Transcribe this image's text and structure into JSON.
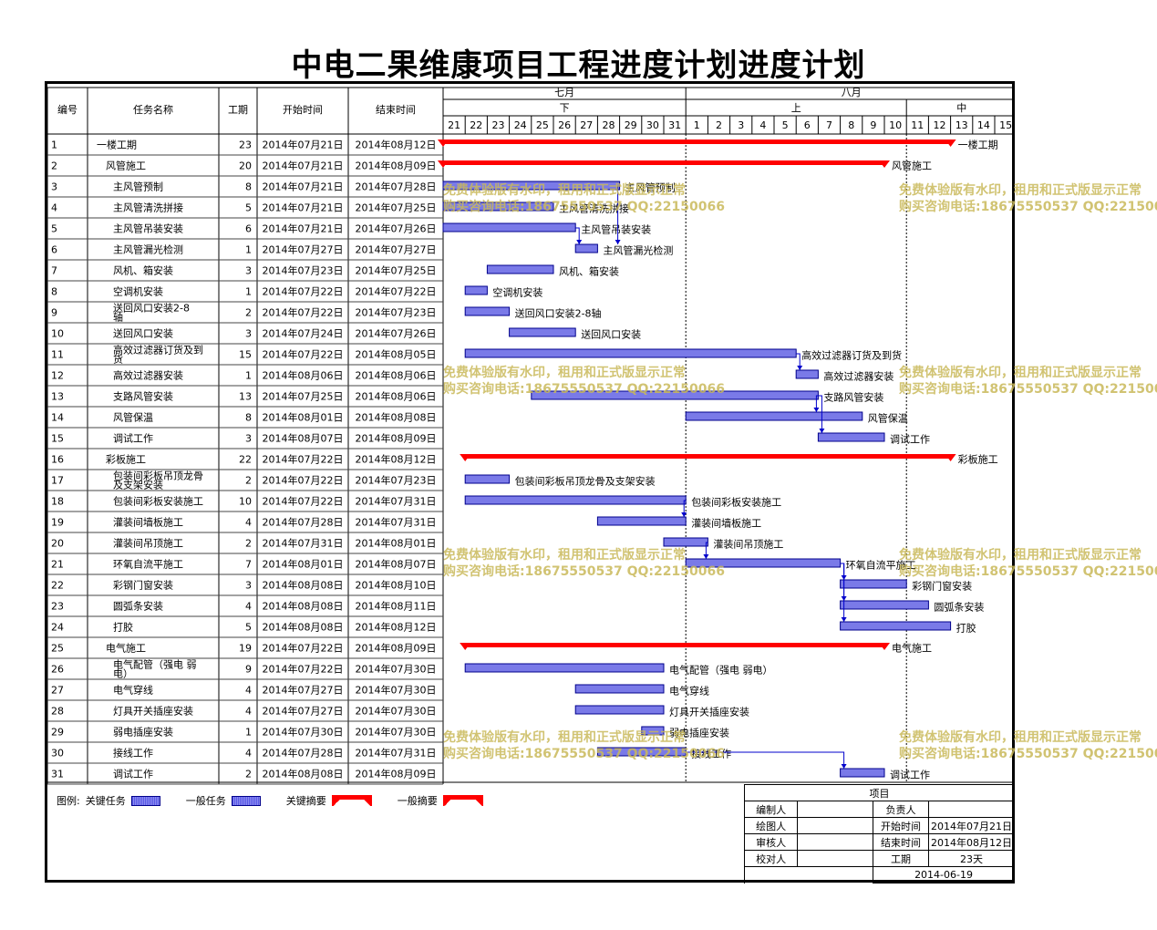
{
  "title": "中电二果维康项目工程进度计划进度计划",
  "headers": {
    "id": "编号",
    "name": "任务名称",
    "duration": "工期",
    "start": "开始时间",
    "end": "结束时间"
  },
  "months": [
    {
      "label": "七月"
    },
    {
      "label": "八月"
    }
  ],
  "periods": [
    {
      "label": "下"
    },
    {
      "label": "上"
    },
    {
      "label": "中"
    }
  ],
  "days": [
    "21",
    "22",
    "23",
    "24",
    "25",
    "26",
    "27",
    "28",
    "29",
    "30",
    "31",
    "1",
    "2",
    "3",
    "4",
    "5",
    "6",
    "7",
    "8",
    "9",
    "10",
    "11",
    "12",
    "13",
    "14",
    "15"
  ],
  "legend": {
    "prefix": "图例:",
    "critical_task": "关键任务",
    "normal_task": "一般任务",
    "critical_summary": "关键摘要",
    "normal_summary": "一般摘要"
  },
  "info": {
    "header": "项目",
    "rows": [
      [
        "编制人",
        "",
        "负责人",
        ""
      ],
      [
        "绘图人",
        "",
        "开始时间",
        "2014年07月21日"
      ],
      [
        "审核人",
        "",
        "结束时间",
        "2014年08月12日"
      ],
      [
        "校对人",
        "",
        "工期",
        "23天"
      ]
    ],
    "date": "2014-06-19"
  },
  "watermark": {
    "line1": "免费体验版有水印，租用和正式版显示正常",
    "line2": "购买咨询电话:18675550537 QQ:22150066"
  },
  "colors": {
    "summary": "#ff0000",
    "task_fill": "#7a7ae8",
    "task_border": "#00008b",
    "watermark": "#c9b95a"
  },
  "chart_data": {
    "type": "gantt",
    "x_start": "2014-07-21",
    "x_end": "2014-08-15",
    "tasks": [
      {
        "id": "1",
        "name": "一楼工期",
        "duration": 23,
        "start": "2014年07月21日",
        "end": "2014年08月12日",
        "level": 0,
        "summary": true
      },
      {
        "id": "2",
        "name": "风管施工",
        "duration": 20,
        "start": "2014年07月21日",
        "end": "2014年08月09日",
        "level": 1,
        "summary": true
      },
      {
        "id": "3",
        "name": "主风管预制",
        "duration": 8,
        "start": "2014年07月21日",
        "end": "2014年07月28日",
        "level": 2
      },
      {
        "id": "4",
        "name": "主风管清洗拼接",
        "duration": 5,
        "start": "2014年07月21日",
        "end": "2014年07月25日",
        "level": 2
      },
      {
        "id": "5",
        "name": "主风管吊装安装",
        "duration": 6,
        "start": "2014年07月21日",
        "end": "2014年07月26日",
        "level": 2
      },
      {
        "id": "6",
        "name": "主风管漏光检测",
        "duration": 1,
        "start": "2014年07月27日",
        "end": "2014年07月27日",
        "level": 2
      },
      {
        "id": "7",
        "name": "风机、箱安装",
        "duration": 3,
        "start": "2014年07月23日",
        "end": "2014年07月25日",
        "level": 2
      },
      {
        "id": "8",
        "name": "空调机安装",
        "duration": 1,
        "start": "2014年07月22日",
        "end": "2014年07月22日",
        "level": 2
      },
      {
        "id": "9",
        "name": "送回风口安装2-8轴",
        "duration": 2,
        "start": "2014年07月22日",
        "end": "2014年07月23日",
        "level": 2
      },
      {
        "id": "10",
        "name": "送回风口安装",
        "duration": 3,
        "start": "2014年07月24日",
        "end": "2014年07月26日",
        "level": 2
      },
      {
        "id": "11",
        "name": "高效过滤器订货及到货",
        "duration": 15,
        "start": "2014年07月22日",
        "end": "2014年08月05日",
        "level": 2
      },
      {
        "id": "12",
        "name": "高效过滤器安装",
        "duration": 1,
        "start": "2014年08月06日",
        "end": "2014年08月06日",
        "level": 2
      },
      {
        "id": "13",
        "name": "支路风管安装",
        "duration": 13,
        "start": "2014年07月25日",
        "end": "2014年08月06日",
        "level": 2
      },
      {
        "id": "14",
        "name": "风管保温",
        "duration": 8,
        "start": "2014年08月01日",
        "end": "2014年08月08日",
        "level": 2
      },
      {
        "id": "15",
        "name": "调试工作",
        "duration": 3,
        "start": "2014年08月07日",
        "end": "2014年08月09日",
        "level": 2
      },
      {
        "id": "16",
        "name": "彩板施工",
        "duration": 22,
        "start": "2014年07月22日",
        "end": "2014年08月12日",
        "level": 1,
        "summary": true
      },
      {
        "id": "17",
        "name": "包装间彩板吊顶龙骨及支架安装",
        "duration": 2,
        "start": "2014年07月22日",
        "end": "2014年07月23日",
        "level": 2
      },
      {
        "id": "18",
        "name": "包装间彩板安装施工",
        "duration": 10,
        "start": "2014年07月22日",
        "end": "2014年07月31日",
        "level": 2
      },
      {
        "id": "19",
        "name": "灌装间墙板施工",
        "duration": 4,
        "start": "2014年07月28日",
        "end": "2014年07月31日",
        "level": 2
      },
      {
        "id": "20",
        "name": "灌装间吊顶施工",
        "duration": 2,
        "start": "2014年07月31日",
        "end": "2014年08月01日",
        "level": 2
      },
      {
        "id": "21",
        "name": "环氧自流平施工",
        "duration": 7,
        "start": "2014年08月01日",
        "end": "2014年08月07日",
        "level": 2
      },
      {
        "id": "22",
        "name": "彩钢门窗安装",
        "duration": 3,
        "start": "2014年08月08日",
        "end": "2014年08月10日",
        "level": 2
      },
      {
        "id": "23",
        "name": "圆弧条安装",
        "duration": 4,
        "start": "2014年08月08日",
        "end": "2014年08月11日",
        "level": 2
      },
      {
        "id": "24",
        "name": "打胶",
        "duration": 5,
        "start": "2014年08月08日",
        "end": "2014年08月12日",
        "level": 2
      },
      {
        "id": "25",
        "name": "电气施工",
        "duration": 19,
        "start": "2014年07月22日",
        "end": "2014年08月09日",
        "level": 1,
        "summary": true
      },
      {
        "id": "26",
        "name": "电气配管（强电 弱电）",
        "duration": 9,
        "start": "2014年07月22日",
        "end": "2014年07月30日",
        "level": 2
      },
      {
        "id": "27",
        "name": "电气穿线",
        "duration": 4,
        "start": "2014年07月27日",
        "end": "2014年07月30日",
        "level": 2
      },
      {
        "id": "28",
        "name": "灯具开关插座安装",
        "duration": 4,
        "start": "2014年07月27日",
        "end": "2014年07月30日",
        "level": 2
      },
      {
        "id": "29",
        "name": "弱电插座安装",
        "duration": 1,
        "start": "2014年07月30日",
        "end": "2014年07月30日",
        "level": 2
      },
      {
        "id": "30",
        "name": "接线工作",
        "duration": 4,
        "start": "2014年07月28日",
        "end": "2014年07月31日",
        "level": 2
      },
      {
        "id": "31",
        "name": "调试工作",
        "duration": 2,
        "start": "2014年08月08日",
        "end": "2014年08月09日",
        "level": 2
      }
    ],
    "dependencies": [
      [
        "3",
        "6"
      ],
      [
        "5",
        "6"
      ],
      [
        "11",
        "12"
      ],
      [
        "13",
        "14"
      ],
      [
        "13",
        "15"
      ],
      [
        "18",
        "19"
      ],
      [
        "20",
        "21"
      ],
      [
        "21",
        "22"
      ],
      [
        "21",
        "23"
      ],
      [
        "21",
        "24"
      ],
      [
        "30",
        "31"
      ]
    ]
  }
}
